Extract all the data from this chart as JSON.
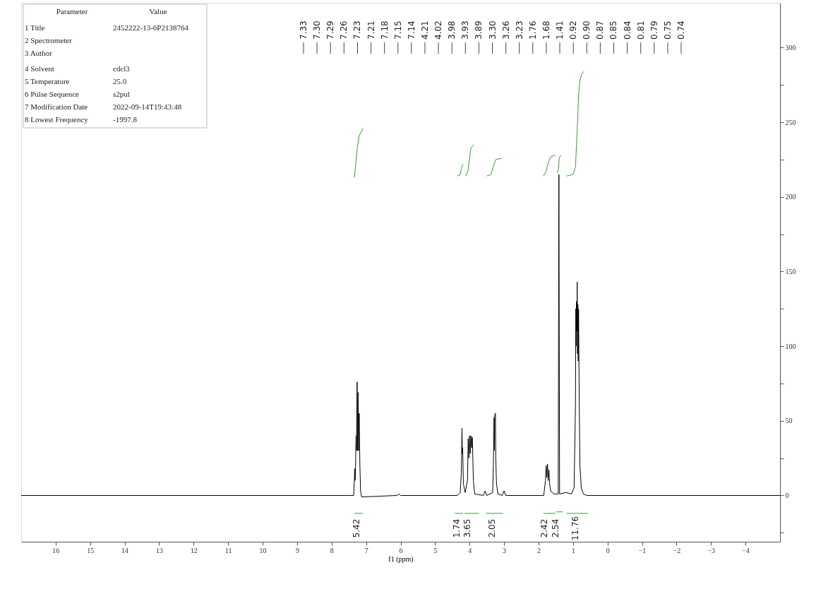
{
  "chart_data": {
    "type": "line",
    "xlabel": "f1 (ppm)",
    "xlim": [
      17.0,
      -5.0
    ],
    "xticks": [
      16,
      15,
      14,
      13,
      12,
      11,
      10,
      9,
      8,
      7,
      6,
      5,
      4,
      3,
      2,
      1,
      0,
      -1,
      -2,
      -3,
      -4
    ],
    "ylim": [
      -31,
      330
    ],
    "yticks": [
      {
        "value": -25,
        "label": null
      },
      0,
      {
        "value": 25,
        "label": null
      },
      50,
      {
        "value": 75,
        "label": null
      },
      100,
      {
        "value": 125,
        "label": null
      },
      150,
      {
        "value": 175,
        "label": null
      },
      200,
      {
        "value": 225,
        "label": null
      },
      250,
      {
        "value": 275,
        "label": null
      },
      300
    ],
    "grid": false,
    "marker": "none",
    "line_style": "solid",
    "series": [
      {
        "color": "#000000",
        "x": [
          17,
          7.5,
          7.36,
          7.34,
          7.33,
          7.32,
          7.31,
          7.29,
          7.28,
          7.26,
          7.25,
          7.24,
          7.23,
          7.22,
          7.21,
          7.2,
          7.18,
          7.16,
          7.13,
          6.1,
          6.05,
          6.0,
          4.35,
          4.27,
          4.24,
          4.22,
          4.21,
          4.2,
          4.18,
          4.13,
          4.06,
          4.04,
          4.02,
          4.0,
          3.98,
          3.96,
          3.94,
          3.92,
          3.89,
          3.85,
          3.6,
          3.55,
          3.5,
          3.33,
          3.31,
          3.29,
          3.28,
          3.27,
          3.25,
          3.24,
          3.22,
          3.18,
          3.05,
          3.0,
          2.95,
          1.85,
          1.8,
          1.78,
          1.76,
          1.74,
          1.72,
          1.7,
          1.68,
          1.65,
          1.55,
          1.43,
          1.41,
          1.39,
          1.2,
          1.05,
          0.97,
          0.93,
          0.92,
          0.91,
          0.9,
          0.89,
          0.88,
          0.87,
          0.86,
          0.85,
          0.84,
          0.82,
          0.8,
          0.76,
          0.7,
          0.6,
          -5
        ],
        "values": [
          0,
          0,
          0,
          10,
          18,
          10,
          14,
          40,
          30,
          76,
          30,
          50,
          69,
          30,
          45,
          55,
          20,
          3,
          -1,
          0,
          1,
          0,
          0,
          2,
          15,
          45,
          28,
          32,
          8,
          2,
          10,
          38,
          25,
          40,
          28,
          40,
          32,
          39,
          10,
          1,
          0,
          3,
          0,
          2,
          20,
          52,
          30,
          54,
          55,
          25,
          8,
          1,
          0,
          3,
          0,
          0,
          10,
          20,
          12,
          21,
          10,
          17,
          8,
          3,
          1,
          1,
          215,
          1,
          2,
          1,
          5,
          60,
          125,
          100,
          130,
          110,
          143,
          95,
          128,
          90,
          125,
          60,
          20,
          5,
          1,
          0,
          0
        ]
      },
      {
        "color": "#3c9a3c",
        "x": [
          7.34,
          7.3,
          7.26,
          7.2,
          7.09
        ],
        "values": [
          213,
          222,
          232,
          241,
          246
        ]
      },
      {
        "color": "#3c9a3c",
        "x": [
          4.36,
          4.27,
          4.24,
          4.19
        ],
        "values": [
          214,
          215,
          219,
          222
        ]
      },
      {
        "color": "#3c9a3c",
        "x": [
          4.12,
          4.05,
          4.0,
          3.96,
          3.87
        ],
        "values": [
          214,
          217,
          226,
          233,
          235
        ]
      },
      {
        "color": "#3c9a3c",
        "x": [
          3.5,
          3.38,
          3.3,
          3.24,
          3.06
        ],
        "values": [
          214,
          215,
          221,
          225,
          226
        ]
      },
      {
        "color": "#3c9a3c",
        "x": [
          1.86,
          1.78,
          1.72,
          1.64,
          1.52
        ],
        "values": [
          214,
          217,
          223,
          227,
          228
        ]
      },
      {
        "color": "#3c9a3c",
        "x": [
          1.45,
          1.42,
          1.4,
          1.36
        ],
        "values": [
          216,
          219,
          226,
          228
        ]
      },
      {
        "color": "#3c9a3c",
        "x": [
          1.19,
          1.0,
          0.93,
          0.9,
          0.87,
          0.84,
          0.8,
          0.74,
          0.68
        ],
        "values": [
          214,
          215,
          220,
          235,
          250,
          268,
          278,
          283,
          284
        ]
      },
      {
        "color": "#3c9a3c",
        "x": [
          7.34,
          7.1
        ],
        "values": [
          -12,
          -12
        ]
      },
      {
        "color": "#3c9a3c",
        "x": [
          4.43,
          4.2
        ],
        "values": [
          -12,
          -12
        ]
      },
      {
        "color": "#3c9a3c",
        "x": [
          4.15,
          3.73
        ],
        "values": [
          -12,
          -12
        ]
      },
      {
        "color": "#3c9a3c",
        "x": [
          3.52,
          3.03
        ],
        "values": [
          -12,
          -12
        ]
      },
      {
        "color": "#3c9a3c",
        "x": [
          1.86,
          1.5
        ],
        "values": [
          -12,
          -12
        ]
      },
      {
        "color": "#3c9a3c",
        "x": [
          1.48,
          1.29
        ],
        "values": [
          -11,
          -11
        ]
      },
      {
        "color": "#3c9a3c",
        "x": [
          1.19,
          0.57
        ],
        "values": [
          -12,
          -12
        ]
      }
    ],
    "annotations": [
      "Parameter",
      "Value",
      "1 Title",
      "2452222-13-6P2138764",
      "2 Spectrometer",
      "3 Author",
      "4 Solvent",
      "cdcl3",
      "5 Temperature",
      "25.0",
      "6 Pulse Sequence",
      "s2pul",
      "7 Modification Date",
      "2022-09-14T19:43:48",
      "8 Lowest Frequency",
      "-1997.8",
      "7.33",
      "7.30",
      "7.29",
      "7.26",
      "7.23",
      "7.21",
      "7.18",
      "7.15",
      "7.14",
      "4.21",
      "4.02",
      "3.98",
      "3.93",
      "3.89",
      "3.30",
      "3.26",
      "3.23",
      "1.76",
      "1.68",
      "1.41",
      "0.92",
      "0.90",
      "0.87",
      "0.85",
      "0.84",
      "0.81",
      "0.79",
      "0.75",
      "0.74",
      "5.42",
      "1.74",
      "3.65",
      "2.05",
      "2.42",
      "2.54",
      "11.76"
    ]
  }
}
